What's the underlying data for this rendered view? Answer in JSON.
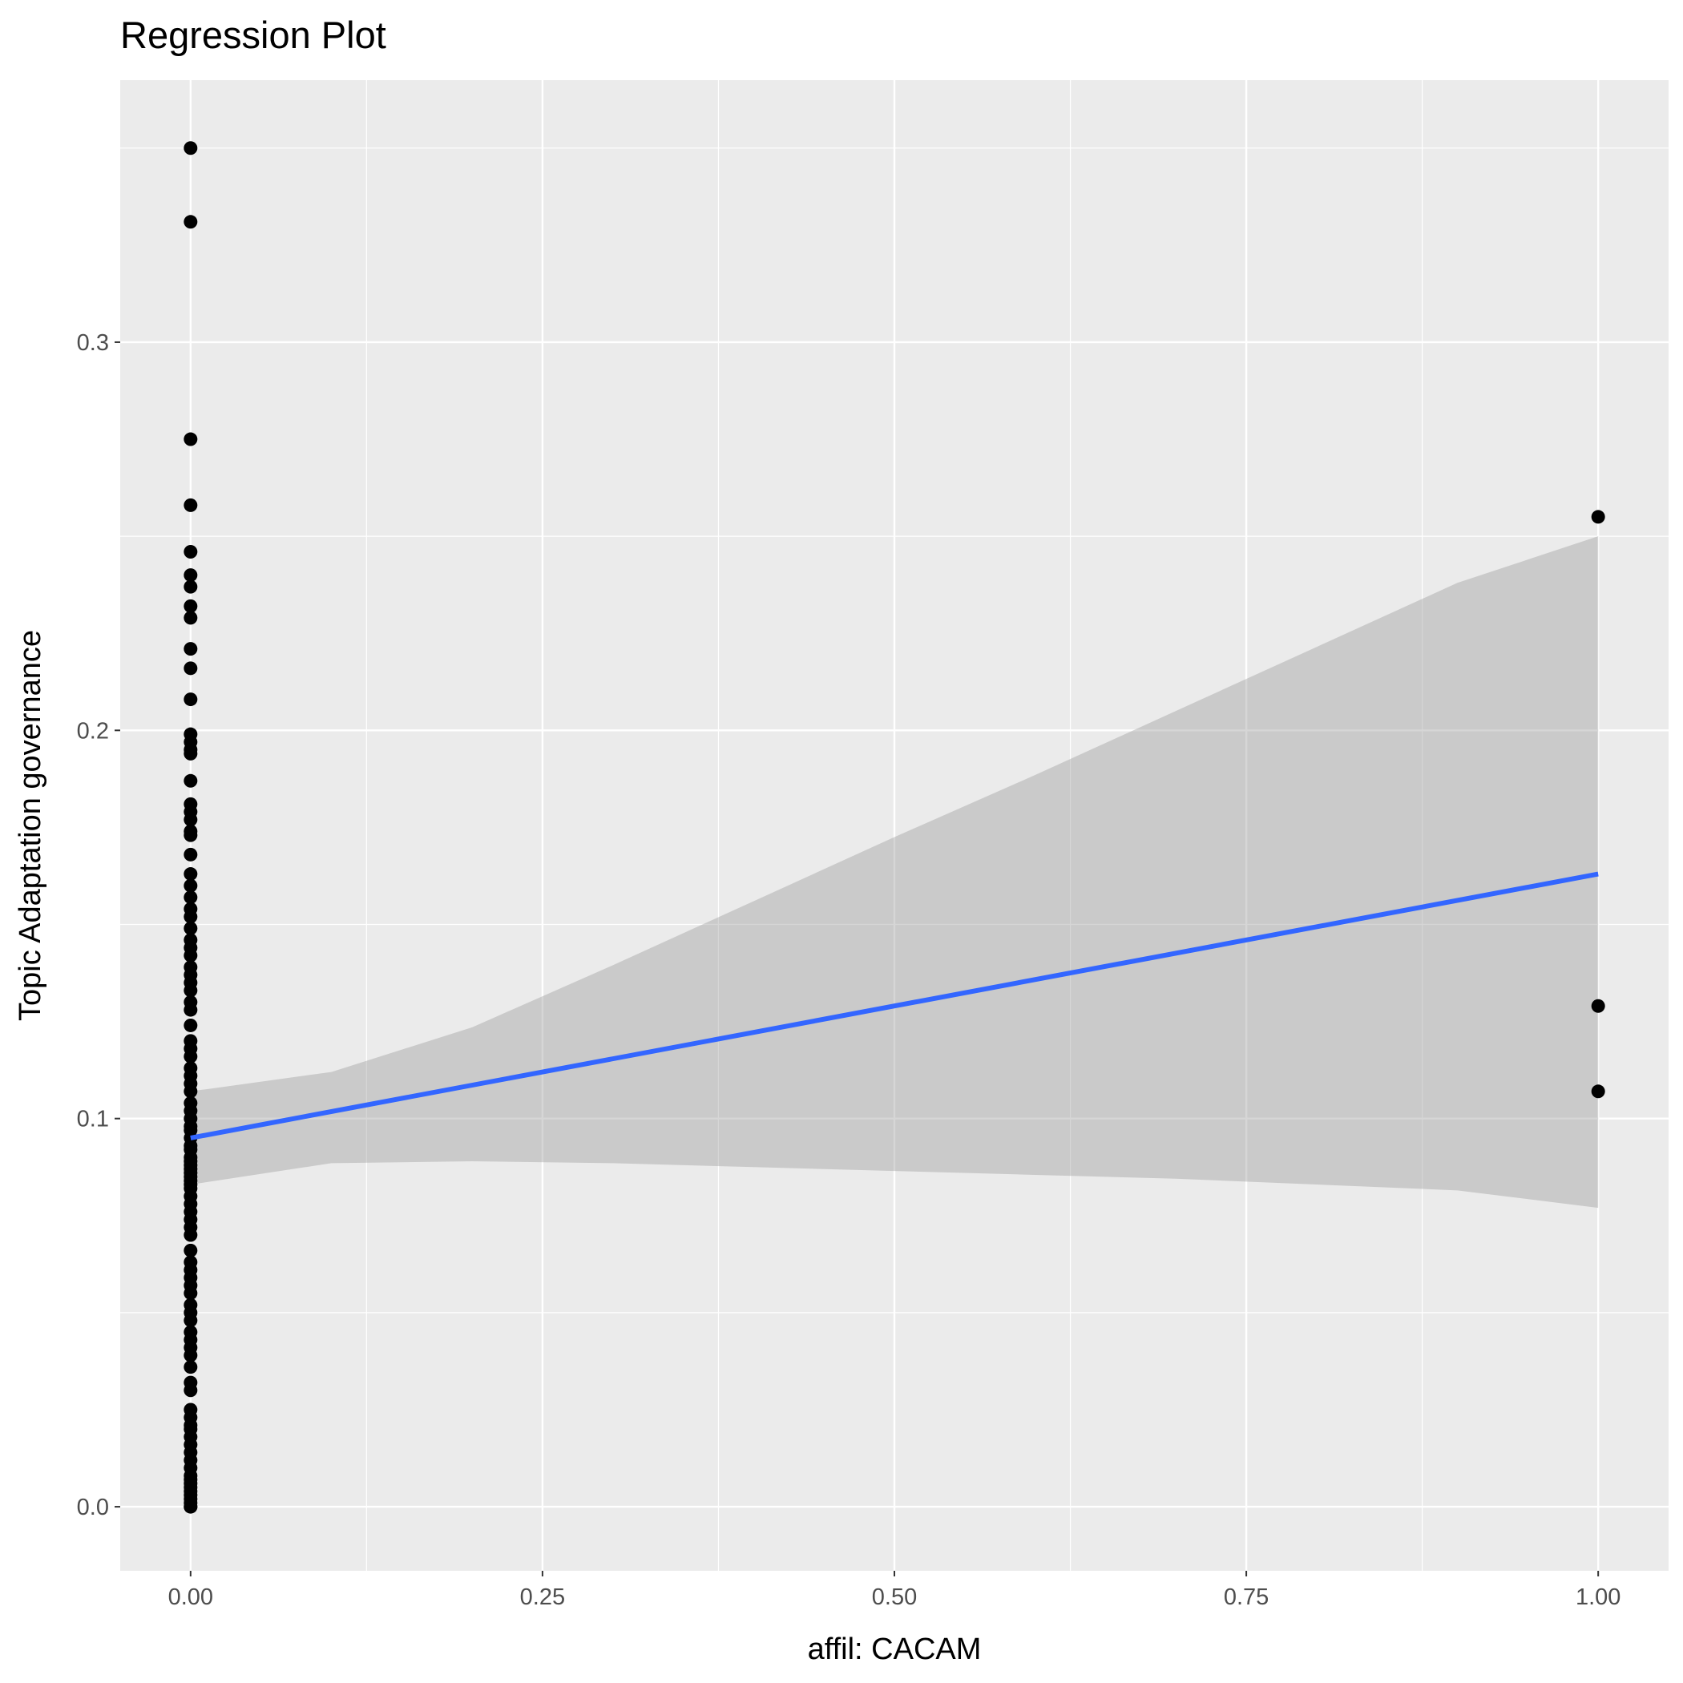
{
  "chart_data": {
    "type": "scatter",
    "title": "Regression Plot",
    "xlabel": "affil: CACAM",
    "ylabel": "Topic Adaptation governance",
    "xlim": [
      -0.05,
      1.05
    ],
    "ylim": [
      -0.0165,
      0.3675
    ],
    "x_ticks": [
      {
        "value": 0,
        "label": "0.00"
      },
      {
        "value": 0.25,
        "label": "0.25"
      },
      {
        "value": 0.5,
        "label": "0.50"
      },
      {
        "value": 0.75,
        "label": "0.75"
      },
      {
        "value": 1,
        "label": "1.00"
      }
    ],
    "y_ticks": [
      {
        "value": 0,
        "label": "0.0"
      },
      {
        "value": 0.1,
        "label": "0.1"
      },
      {
        "value": 0.2,
        "label": "0.2"
      },
      {
        "value": 0.3,
        "label": "0.3"
      }
    ],
    "grid": true,
    "legend": "none",
    "colors": {
      "panel_background": "#ebebeb",
      "grid": "#ffffff",
      "points": "#000000",
      "regression_line": "#3366ff",
      "confidence_band": "#999999"
    },
    "points": {
      "x": [
        0,
        0,
        0,
        0,
        0,
        0,
        0,
        0,
        0,
        0,
        0,
        0,
        0,
        0,
        0,
        0,
        0,
        0,
        0,
        0,
        0,
        0,
        0,
        0,
        0,
        0,
        0,
        0,
        0,
        0,
        0,
        0,
        0,
        0,
        0,
        0,
        0,
        0,
        0,
        0,
        0,
        0,
        0,
        0,
        0,
        0,
        0,
        0,
        0,
        0,
        0,
        0,
        0,
        0,
        0,
        0,
        0,
        0,
        0,
        0,
        0,
        0,
        0,
        0,
        0,
        0,
        0,
        0,
        0,
        0,
        0,
        0,
        0,
        0,
        0,
        0,
        0,
        0,
        0,
        0,
        0,
        0,
        0,
        0,
        0,
        0,
        0,
        0,
        0,
        0,
        0,
        0,
        0,
        0,
        0,
        0,
        0,
        0,
        0,
        0,
        0,
        0,
        0,
        0,
        1,
        1,
        1
      ],
      "y": [
        0.35,
        0.331,
        0.275,
        0.258,
        0.246,
        0.24,
        0.237,
        0.232,
        0.229,
        0.221,
        0.216,
        0.208,
        0.199,
        0.197,
        0.195,
        0.194,
        0.187,
        0.181,
        0.179,
        0.177,
        0.174,
        0.173,
        0.168,
        0.163,
        0.16,
        0.157,
        0.154,
        0.152,
        0.149,
        0.146,
        0.144,
        0.142,
        0.139,
        0.137,
        0.135,
        0.133,
        0.13,
        0.128,
        0.124,
        0.12,
        0.118,
        0.116,
        0.113,
        0.111,
        0.109,
        0.107,
        0.104,
        0.102,
        0.1,
        0.098,
        0.097,
        0.095,
        0.093,
        0.092,
        0.09,
        0.089,
        0.088,
        0.087,
        0.086,
        0.085,
        0.084,
        0.083,
        0.082,
        0.08,
        0.078,
        0.076,
        0.074,
        0.072,
        0.07,
        0.066,
        0.063,
        0.061,
        0.059,
        0.057,
        0.055,
        0.052,
        0.05,
        0.048,
        0.045,
        0.043,
        0.041,
        0.039,
        0.036,
        0.032,
        0.03,
        0.025,
        0.023,
        0.021,
        0.02,
        0.018,
        0.016,
        0.014,
        0.012,
        0.01,
        0.008,
        0.007,
        0.006,
        0.005,
        0.004,
        0.003,
        0.002,
        0.001,
        0.0,
        0.0,
        0.255,
        0.129,
        0.107
      ]
    },
    "regression_line": {
      "x": [
        0,
        1
      ],
      "y": [
        0.095,
        0.163
      ]
    },
    "confidence_band": {
      "x": [
        0,
        0.1,
        0.2,
        0.3,
        0.4,
        0.5,
        0.6,
        0.7,
        0.8,
        0.9,
        1.0
      ],
      "lower": [
        0.083,
        0.0885,
        0.089,
        0.0885,
        0.0875,
        0.0865,
        0.0855,
        0.0845,
        0.083,
        0.0815,
        0.077
      ],
      "upper": [
        0.107,
        0.112,
        0.1235,
        0.1395,
        0.156,
        0.1725,
        0.1885,
        0.205,
        0.2215,
        0.238,
        0.25
      ]
    }
  }
}
